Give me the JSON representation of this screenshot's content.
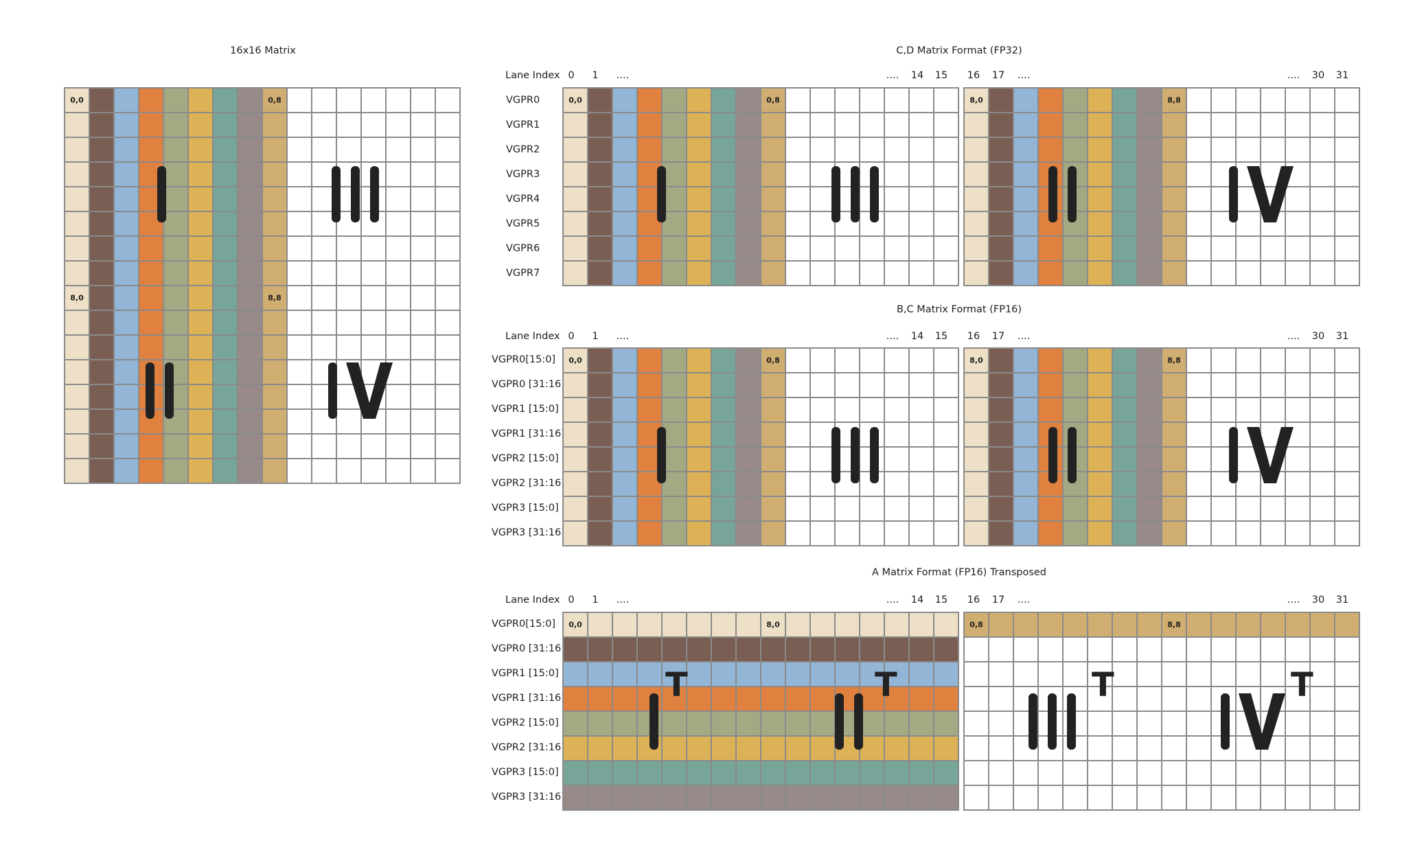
{
  "colors": {
    "bg": "#ffffff",
    "grid_line": "#8a8a8a",
    "glyph": "#222222",
    "columns": [
      "#ede0c6",
      "#7b5e53",
      "#93b6d6",
      "#e0813f",
      "#a3a983",
      "#ddb257",
      "#77a599",
      "#978a89",
      "#d0ae71"
    ]
  },
  "labels": {
    "matrix16": "16x16 Matrix",
    "cd_title": "C,D Matrix Format (FP32)",
    "bc_title": "B,C Matrix Format (FP16)",
    "a_title": "A Matrix Format (FP16) Transposed",
    "lane_index": "Lane Index",
    "lanes_left": [
      "0",
      "1",
      "....",
      "....",
      "14",
      "15"
    ],
    "lanes_right": [
      "16",
      "17",
      "....",
      "....",
      "30",
      "31"
    ]
  },
  "cd_rows": [
    "VGPR0",
    "VGPR1",
    "VGPR2",
    "VGPR3",
    "VGPR4",
    "VGPR5",
    "VGPR6",
    "VGPR7"
  ],
  "bc_rows": [
    "VGPR0[15:0]",
    "VGPR0 [31:16]",
    "VGPR1 [15:0]",
    "VGPR1 [31:16]",
    "VGPR2 [15:0]",
    "VGPR2 [31:16]",
    "VGPR3 [15:0]",
    "VGPR3 [31:16]"
  ],
  "a_rows": [
    "VGPR0[15:0]",
    "VGPR0 [31:16]",
    "VGPR1 [15:0]",
    "VGPR1 [31:16]",
    "VGPR2 [15:0]",
    "VGPR2 [31:16]",
    "VGPR3 [15:0]",
    "VGPR3 [31:16]"
  ],
  "coords": {
    "c00": "0,0",
    "c08": "0,8",
    "c80": "8,0",
    "c88": "8,8"
  },
  "quadrants": {
    "q1": "I",
    "q2": "II",
    "q3": "III",
    "q4": "IV",
    "t": "T"
  }
}
